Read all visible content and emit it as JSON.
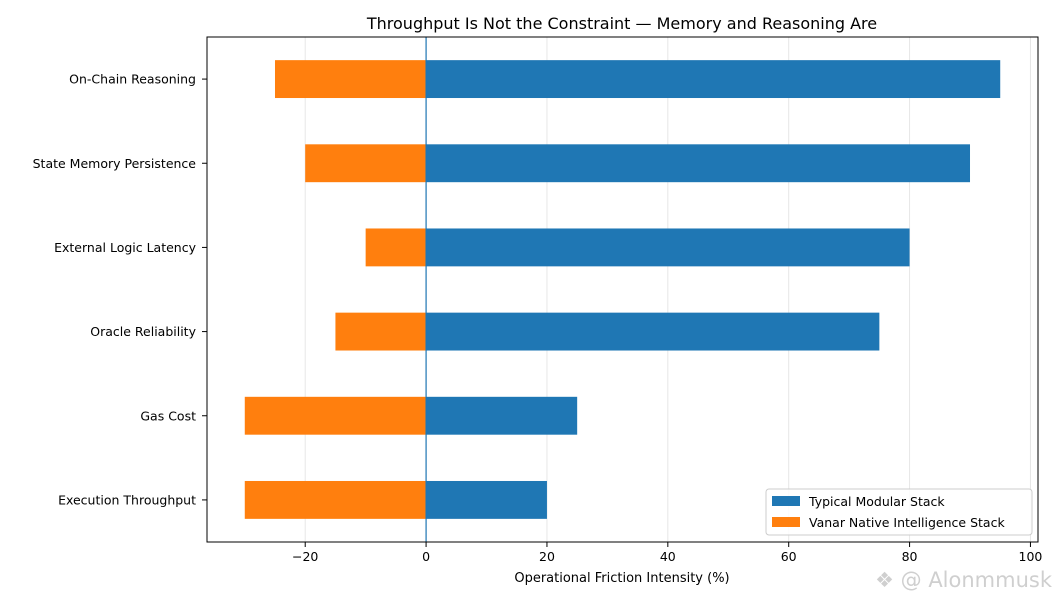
{
  "chart_data": {
    "type": "bar",
    "orientation": "horizontal",
    "stacked": true,
    "title": "Throughput Is Not the Constraint — Memory and Reasoning Are",
    "xlabel": "Operational Friction Intensity (%)",
    "ylabel": "",
    "xlim": [
      -36.25,
      101.25
    ],
    "xticks": [
      -20,
      0,
      20,
      40,
      60,
      80,
      100
    ],
    "xtick_labels": [
      "−20",
      "0",
      "20",
      "40",
      "60",
      "80",
      "100"
    ],
    "grid": "x",
    "zero_line": true,
    "legend_position": "lower-right",
    "categories": [
      "Execution Throughput",
      "Gas Cost",
      "Oracle Reliability",
      "External Logic Latency",
      "State Memory Persistence",
      "On-Chain Reasoning"
    ],
    "series": [
      {
        "name": "Typical Modular Stack",
        "color": "#1f77b4",
        "values": [
          20,
          25,
          75,
          80,
          90,
          95
        ]
      },
      {
        "name": "Vanar Native Intelligence Stack",
        "color": "#ff7f0e",
        "values": [
          -30,
          -30,
          -15,
          -10,
          -20,
          -25
        ]
      }
    ]
  },
  "watermark": {
    "text": "@ Alonmmusk",
    "icon": "logo-icon"
  }
}
